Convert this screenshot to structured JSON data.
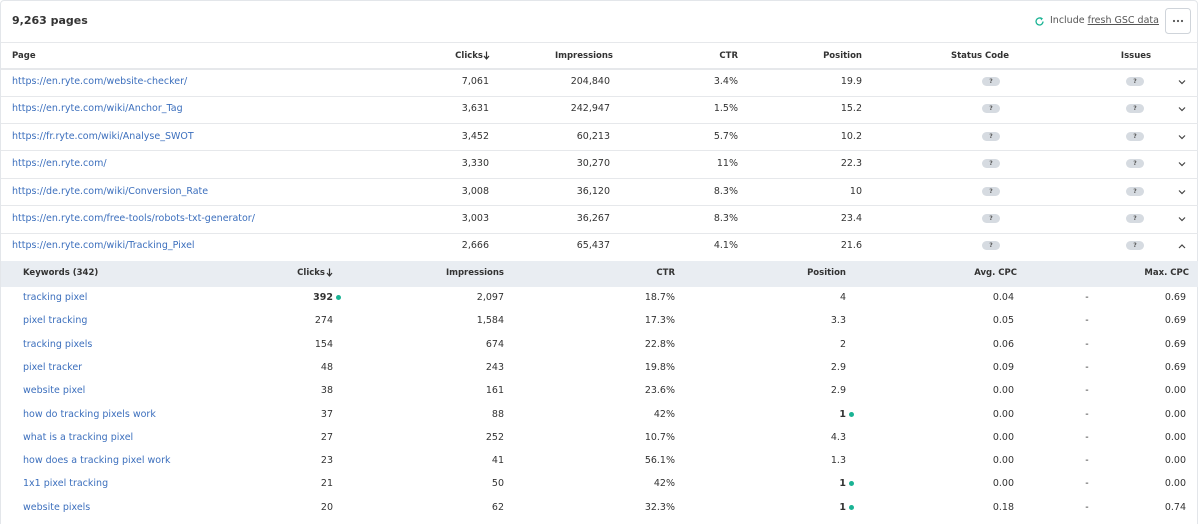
{
  "header": {
    "title": "9,263 pages",
    "include_prefix": "Include",
    "include_link": "fresh GSC data"
  },
  "table": {
    "columns": [
      "Page",
      "Clicks",
      "Impressions",
      "CTR",
      "Position",
      "Status Code",
      "Issues"
    ],
    "rows": [
      {
        "page": "https://en.ryte.com/website-checker/",
        "clicks": "7,061",
        "impressions": "204,840",
        "ctr": "3.4%",
        "position": "19.9",
        "status_code": "?",
        "issues": "?",
        "expanded": false
      },
      {
        "page": "https://en.ryte.com/wiki/Anchor_Tag",
        "clicks": "3,631",
        "impressions": "242,947",
        "ctr": "1.5%",
        "position": "15.2",
        "status_code": "?",
        "issues": "?",
        "expanded": false
      },
      {
        "page": "https://fr.ryte.com/wiki/Analyse_SWOT",
        "clicks": "3,452",
        "impressions": "60,213",
        "ctr": "5.7%",
        "position": "10.2",
        "status_code": "?",
        "issues": "?",
        "expanded": false
      },
      {
        "page": "https://en.ryte.com/",
        "clicks": "3,330",
        "impressions": "30,270",
        "ctr": "11%",
        "position": "22.3",
        "status_code": "?",
        "issues": "?",
        "expanded": false
      },
      {
        "page": "https://de.ryte.com/wiki/Conversion_Rate",
        "clicks": "3,008",
        "impressions": "36,120",
        "ctr": "8.3%",
        "position": "10",
        "status_code": "?",
        "issues": "?",
        "expanded": false
      },
      {
        "page": "https://en.ryte.com/free-tools/robots-txt-generator/",
        "clicks": "3,003",
        "impressions": "36,267",
        "ctr": "8.3%",
        "position": "23.4",
        "status_code": "?",
        "issues": "?",
        "expanded": false
      },
      {
        "page": "https://en.ryte.com/wiki/Tracking_Pixel",
        "clicks": "2,666",
        "impressions": "65,437",
        "ctr": "4.1%",
        "position": "21.6",
        "status_code": "?",
        "issues": "?",
        "expanded": true
      }
    ]
  },
  "keywords": {
    "columns": [
      "Keywords (342)",
      "Clicks",
      "Impressions",
      "CTR",
      "Position",
      "Avg. CPC",
      "Max. CPC"
    ],
    "rows": [
      {
        "keyword": "tracking pixel",
        "clicks": "392",
        "impressions": "2,097",
        "ctr": "18.7%",
        "position": "4",
        "avg_cpc": "0.04",
        "dash": "-",
        "max_cpc": "0.69",
        "clicks_dot": true,
        "position_dot": false
      },
      {
        "keyword": "pixel tracking",
        "clicks": "274",
        "impressions": "1,584",
        "ctr": "17.3%",
        "position": "3.3",
        "avg_cpc": "0.05",
        "dash": "-",
        "max_cpc": "0.69",
        "clicks_dot": false,
        "position_dot": false
      },
      {
        "keyword": "tracking pixels",
        "clicks": "154",
        "impressions": "674",
        "ctr": "22.8%",
        "position": "2",
        "avg_cpc": "0.06",
        "dash": "-",
        "max_cpc": "0.69",
        "clicks_dot": false,
        "position_dot": false
      },
      {
        "keyword": "pixel tracker",
        "clicks": "48",
        "impressions": "243",
        "ctr": "19.8%",
        "position": "2.9",
        "avg_cpc": "0.09",
        "dash": "-",
        "max_cpc": "0.69",
        "clicks_dot": false,
        "position_dot": false
      },
      {
        "keyword": "website pixel",
        "clicks": "38",
        "impressions": "161",
        "ctr": "23.6%",
        "position": "2.9",
        "avg_cpc": "0.00",
        "dash": "-",
        "max_cpc": "0.00",
        "clicks_dot": false,
        "position_dot": false
      },
      {
        "keyword": "how do tracking pixels work",
        "clicks": "37",
        "impressions": "88",
        "ctr": "42%",
        "position": "1",
        "avg_cpc": "0.00",
        "dash": "-",
        "max_cpc": "0.00",
        "clicks_dot": false,
        "position_dot": true
      },
      {
        "keyword": "what is a tracking pixel",
        "clicks": "27",
        "impressions": "252",
        "ctr": "10.7%",
        "position": "4.3",
        "avg_cpc": "0.00",
        "dash": "-",
        "max_cpc": "0.00",
        "clicks_dot": false,
        "position_dot": false
      },
      {
        "keyword": "how does a tracking pixel work",
        "clicks": "23",
        "impressions": "41",
        "ctr": "56.1%",
        "position": "1.3",
        "avg_cpc": "0.00",
        "dash": "-",
        "max_cpc": "0.00",
        "clicks_dot": false,
        "position_dot": false
      },
      {
        "keyword": "1x1 pixel tracking",
        "clicks": "21",
        "impressions": "50",
        "ctr": "42%",
        "position": "1",
        "avg_cpc": "0.00",
        "dash": "-",
        "max_cpc": "0.00",
        "clicks_dot": false,
        "position_dot": true
      },
      {
        "keyword": "website pixels",
        "clicks": "20",
        "impressions": "62",
        "ctr": "32.3%",
        "position": "1",
        "avg_cpc": "0.18",
        "dash": "-",
        "max_cpc": "0.74",
        "clicks_dot": false,
        "position_dot": true
      }
    ]
  }
}
